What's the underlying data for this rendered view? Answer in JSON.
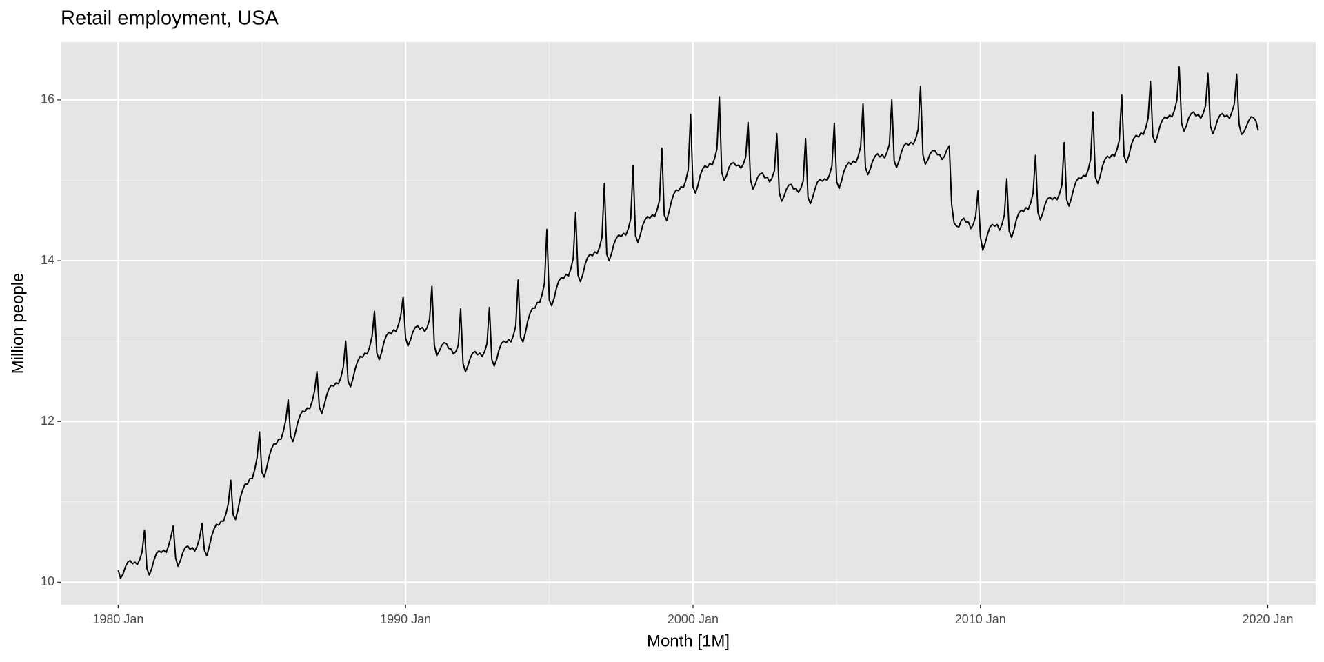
{
  "chart_data": {
    "type": "line",
    "title": "Retail employment, USA",
    "xlabel": "Month [1M]",
    "ylabel": "Million people",
    "x": [
      "1980 Jan",
      "1980 Feb",
      "1980 Mar",
      "1980 Apr",
      "1980 May",
      "1980 Jun",
      "1980 Jul",
      "1980 Aug",
      "1980 Sep",
      "1980 Oct",
      "1980 Nov",
      "1980 Dec",
      "1981 Jan",
      "1981 Feb",
      "1981 Mar",
      "1981 Apr",
      "1981 May",
      "1981 Jun",
      "1981 Jul",
      "1981 Aug",
      "1981 Sep",
      "1981 Oct",
      "1981 Nov",
      "1981 Dec",
      "1982 Jan",
      "1982 Feb",
      "1982 Mar",
      "1982 Apr",
      "1982 May",
      "1982 Jun",
      "1982 Jul",
      "1982 Aug",
      "1982 Sep",
      "1982 Oct",
      "1982 Nov",
      "1982 Dec",
      "1983 Jan",
      "1983 Feb",
      "1983 Mar",
      "1983 Apr",
      "1983 May",
      "1983 Jun",
      "1983 Jul",
      "1983 Aug",
      "1983 Sep",
      "1983 Oct",
      "1983 Nov",
      "1983 Dec",
      "1984 Jan",
      "1984 Feb",
      "1984 Mar",
      "1984 Apr",
      "1984 May",
      "1984 Jun",
      "1984 Jul",
      "1984 Aug",
      "1984 Sep",
      "1984 Oct",
      "1984 Nov",
      "1984 Dec",
      "1985 Jan",
      "1985 Feb",
      "1985 Mar",
      "1985 Apr",
      "1985 May",
      "1985 Jun",
      "1985 Jul",
      "1985 Aug",
      "1985 Sep",
      "1985 Oct",
      "1985 Nov",
      "1985 Dec",
      "1986 Jan",
      "1986 Feb",
      "1986 Mar",
      "1986 Apr",
      "1986 May",
      "1986 Jun",
      "1986 Jul",
      "1986 Aug",
      "1986 Sep",
      "1986 Oct",
      "1986 Nov",
      "1986 Dec",
      "1987 Jan",
      "1987 Feb",
      "1987 Mar",
      "1987 Apr",
      "1987 May",
      "1987 Jun",
      "1987 Jul",
      "1987 Aug",
      "1987 Sep",
      "1987 Oct",
      "1987 Nov",
      "1987 Dec",
      "1988 Jan",
      "1988 Feb",
      "1988 Mar",
      "1988 Apr",
      "1988 May",
      "1988 Jun",
      "1988 Jul",
      "1988 Aug",
      "1988 Sep",
      "1988 Oct",
      "1988 Nov",
      "1988 Dec",
      "1989 Jan",
      "1989 Feb",
      "1989 Mar",
      "1989 Apr",
      "1989 May",
      "1989 Jun",
      "1989 Jul",
      "1989 Aug",
      "1989 Sep",
      "1989 Oct",
      "1989 Nov",
      "1989 Dec",
      "1990 Jan",
      "1990 Feb",
      "1990 Mar",
      "1990 Apr",
      "1990 May",
      "1990 Jun",
      "1990 Jul",
      "1990 Aug",
      "1990 Sep",
      "1990 Oct",
      "1990 Nov",
      "1990 Dec",
      "1991 Jan",
      "1991 Feb",
      "1991 Mar",
      "1991 Apr",
      "1991 May",
      "1991 Jun",
      "1991 Jul",
      "1991 Aug",
      "1991 Sep",
      "1991 Oct",
      "1991 Nov",
      "1991 Dec",
      "1992 Jan",
      "1992 Feb",
      "1992 Mar",
      "1992 Apr",
      "1992 May",
      "1992 Jun",
      "1992 Jul",
      "1992 Aug",
      "1992 Sep",
      "1992 Oct",
      "1992 Nov",
      "1992 Dec",
      "1993 Jan",
      "1993 Feb",
      "1993 Mar",
      "1993 Apr",
      "1993 May",
      "1993 Jun",
      "1993 Jul",
      "1993 Aug",
      "1993 Sep",
      "1993 Oct",
      "1993 Nov",
      "1993 Dec",
      "1994 Jan",
      "1994 Feb",
      "1994 Mar",
      "1994 Apr",
      "1994 May",
      "1994 Jun",
      "1994 Jul",
      "1994 Aug",
      "1994 Sep",
      "1994 Oct",
      "1994 Nov",
      "1994 Dec",
      "1995 Jan",
      "1995 Feb",
      "1995 Mar",
      "1995 Apr",
      "1995 May",
      "1995 Jun",
      "1995 Jul",
      "1995 Aug",
      "1995 Sep",
      "1995 Oct",
      "1995 Nov",
      "1995 Dec",
      "1996 Jan",
      "1996 Feb",
      "1996 Mar",
      "1996 Apr",
      "1996 May",
      "1996 Jun",
      "1996 Jul",
      "1996 Aug",
      "1996 Sep",
      "1996 Oct",
      "1996 Nov",
      "1996 Dec",
      "1997 Jan",
      "1997 Feb",
      "1997 Mar",
      "1997 Apr",
      "1997 May",
      "1997 Jun",
      "1997 Jul",
      "1997 Aug",
      "1997 Sep",
      "1997 Oct",
      "1997 Nov",
      "1997 Dec",
      "1998 Jan",
      "1998 Feb",
      "1998 Mar",
      "1998 Apr",
      "1998 May",
      "1998 Jun",
      "1998 Jul",
      "1998 Aug",
      "1998 Sep",
      "1998 Oct",
      "1998 Nov",
      "1998 Dec",
      "1999 Jan",
      "1999 Feb",
      "1999 Mar",
      "1999 Apr",
      "1999 May",
      "1999 Jun",
      "1999 Jul",
      "1999 Aug",
      "1999 Sep",
      "1999 Oct",
      "1999 Nov",
      "1999 Dec",
      "2000 Jan",
      "2000 Feb",
      "2000 Mar",
      "2000 Apr",
      "2000 May",
      "2000 Jun",
      "2000 Jul",
      "2000 Aug",
      "2000 Sep",
      "2000 Oct",
      "2000 Nov",
      "2000 Dec",
      "2001 Jan",
      "2001 Feb",
      "2001 Mar",
      "2001 Apr",
      "2001 May",
      "2001 Jun",
      "2001 Jul",
      "2001 Aug",
      "2001 Sep",
      "2001 Oct",
      "2001 Nov",
      "2001 Dec",
      "2002 Jan",
      "2002 Feb",
      "2002 Mar",
      "2002 Apr",
      "2002 May",
      "2002 Jun",
      "2002 Jul",
      "2002 Aug",
      "2002 Sep",
      "2002 Oct",
      "2002 Nov",
      "2002 Dec",
      "2003 Jan",
      "2003 Feb",
      "2003 Mar",
      "2003 Apr",
      "2003 May",
      "2003 Jun",
      "2003 Jul",
      "2003 Aug",
      "2003 Sep",
      "2003 Oct",
      "2003 Nov",
      "2003 Dec",
      "2004 Jan",
      "2004 Feb",
      "2004 Mar",
      "2004 Apr",
      "2004 May",
      "2004 Jun",
      "2004 Jul",
      "2004 Aug",
      "2004 Sep",
      "2004 Oct",
      "2004 Nov",
      "2004 Dec",
      "2005 Jan",
      "2005 Feb",
      "2005 Mar",
      "2005 Apr",
      "2005 May",
      "2005 Jun",
      "2005 Jul",
      "2005 Aug",
      "2005 Sep",
      "2005 Oct",
      "2005 Nov",
      "2005 Dec",
      "2006 Jan",
      "2006 Feb",
      "2006 Mar",
      "2006 Apr",
      "2006 May",
      "2006 Jun",
      "2006 Jul",
      "2006 Aug",
      "2006 Sep",
      "2006 Oct",
      "2006 Nov",
      "2006 Dec",
      "2007 Jan",
      "2007 Feb",
      "2007 Mar",
      "2007 Apr",
      "2007 May",
      "2007 Jun",
      "2007 Jul",
      "2007 Aug",
      "2007 Sep",
      "2007 Oct",
      "2007 Nov",
      "2007 Dec",
      "2008 Jan",
      "2008 Feb",
      "2008 Mar",
      "2008 Apr",
      "2008 May",
      "2008 Jun",
      "2008 Jul",
      "2008 Aug",
      "2008 Sep",
      "2008 Oct",
      "2008 Nov",
      "2008 Dec",
      "2009 Jan",
      "2009 Feb",
      "2009 Mar",
      "2009 Apr",
      "2009 May",
      "2009 Jun",
      "2009 Jul",
      "2009 Aug",
      "2009 Sep",
      "2009 Oct",
      "2009 Nov",
      "2009 Dec",
      "2010 Jan",
      "2010 Feb",
      "2010 Mar",
      "2010 Apr",
      "2010 May",
      "2010 Jun",
      "2010 Jul",
      "2010 Aug",
      "2010 Sep",
      "2010 Oct",
      "2010 Nov",
      "2010 Dec",
      "2011 Jan",
      "2011 Feb",
      "2011 Mar",
      "2011 Apr",
      "2011 May",
      "2011 Jun",
      "2011 Jul",
      "2011 Aug",
      "2011 Sep",
      "2011 Oct",
      "2011 Nov",
      "2011 Dec",
      "2012 Jan",
      "2012 Feb",
      "2012 Mar",
      "2012 Apr",
      "2012 May",
      "2012 Jun",
      "2012 Jul",
      "2012 Aug",
      "2012 Sep",
      "2012 Oct",
      "2012 Nov",
      "2012 Dec",
      "2013 Jan",
      "2013 Feb",
      "2013 Mar",
      "2013 Apr",
      "2013 May",
      "2013 Jun",
      "2013 Jul",
      "2013 Aug",
      "2013 Sep",
      "2013 Oct",
      "2013 Nov",
      "2013 Dec",
      "2014 Jan",
      "2014 Feb",
      "2014 Mar",
      "2014 Apr",
      "2014 May",
      "2014 Jun",
      "2014 Jul",
      "2014 Aug",
      "2014 Sep",
      "2014 Oct",
      "2014 Nov",
      "2014 Dec",
      "2015 Jan",
      "2015 Feb",
      "2015 Mar",
      "2015 Apr",
      "2015 May",
      "2015 Jun",
      "2015 Jul",
      "2015 Aug",
      "2015 Sep",
      "2015 Oct",
      "2015 Nov",
      "2015 Dec",
      "2016 Jan",
      "2016 Feb",
      "2016 Mar",
      "2016 Apr",
      "2016 May",
      "2016 Jun",
      "2016 Jul",
      "2016 Aug",
      "2016 Sep",
      "2016 Oct",
      "2016 Nov",
      "2016 Dec",
      "2017 Jan",
      "2017 Feb",
      "2017 Mar",
      "2017 Apr",
      "2017 May",
      "2017 Jun",
      "2017 Jul",
      "2017 Aug",
      "2017 Sep",
      "2017 Oct",
      "2017 Nov",
      "2017 Dec",
      "2018 Jan",
      "2018 Feb",
      "2018 Mar",
      "2018 Apr",
      "2018 May",
      "2018 Jun",
      "2018 Jul",
      "2018 Aug",
      "2018 Sep",
      "2018 Oct",
      "2018 Nov",
      "2018 Dec",
      "2019 Jan",
      "2019 Feb",
      "2019 Mar",
      "2019 Apr",
      "2019 May",
      "2019 Jun",
      "2019 Jul",
      "2019 Aug",
      "2019 Sep"
    ],
    "values": [
      10.15,
      10.05,
      10.1,
      10.19,
      10.25,
      10.27,
      10.23,
      10.25,
      10.22,
      10.28,
      10.38,
      10.65,
      10.17,
      10.09,
      10.17,
      10.28,
      10.36,
      10.39,
      10.37,
      10.4,
      10.37,
      10.45,
      10.56,
      10.7,
      10.3,
      10.2,
      10.27,
      10.37,
      10.43,
      10.45,
      10.41,
      10.43,
      10.39,
      10.45,
      10.55,
      10.73,
      10.4,
      10.33,
      10.44,
      10.57,
      10.66,
      10.72,
      10.71,
      10.76,
      10.76,
      10.85,
      10.98,
      11.27,
      10.84,
      10.78,
      10.9,
      11.05,
      11.15,
      11.22,
      11.22,
      11.29,
      11.29,
      11.4,
      11.55,
      11.87,
      11.37,
      11.31,
      11.42,
      11.56,
      11.66,
      11.72,
      11.72,
      11.78,
      11.78,
      11.88,
      12.02,
      12.27,
      11.82,
      11.75,
      11.86,
      11.99,
      12.08,
      12.13,
      12.12,
      12.17,
      12.16,
      12.25,
      12.38,
      12.62,
      12.18,
      12.1,
      12.2,
      12.32,
      12.41,
      12.45,
      12.44,
      12.48,
      12.47,
      12.55,
      12.68,
      13.0,
      12.5,
      12.43,
      12.53,
      12.66,
      12.75,
      12.81,
      12.8,
      12.85,
      12.84,
      12.93,
      13.06,
      13.37,
      12.85,
      12.77,
      12.86,
      12.99,
      13.07,
      13.11,
      13.09,
      13.14,
      13.12,
      13.2,
      13.32,
      13.55,
      13.04,
      12.94,
      13.01,
      13.11,
      13.17,
      13.19,
      13.15,
      13.17,
      13.12,
      13.17,
      13.27,
      13.68,
      12.95,
      12.82,
      12.87,
      12.94,
      12.98,
      12.97,
      12.91,
      12.9,
      12.84,
      12.87,
      12.95,
      13.4,
      12.72,
      12.62,
      12.69,
      12.79,
      12.85,
      12.87,
      12.83,
      12.85,
      12.81,
      12.87,
      12.97,
      13.42,
      12.77,
      12.69,
      12.77,
      12.89,
      12.97,
      13.0,
      12.98,
      13.02,
      12.99,
      13.07,
      13.19,
      13.76,
      13.05,
      12.99,
      13.1,
      13.25,
      13.35,
      13.41,
      13.41,
      13.48,
      13.48,
      13.58,
      13.72,
      14.39,
      13.51,
      13.44,
      13.53,
      13.66,
      13.75,
      13.79,
      13.78,
      13.83,
      13.81,
      13.9,
      14.03,
      14.6,
      13.82,
      13.74,
      13.83,
      13.96,
      14.04,
      14.08,
      14.06,
      14.11,
      14.09,
      14.17,
      14.29,
      14.96,
      14.08,
      14.0,
      14.09,
      14.21,
      14.28,
      14.32,
      14.3,
      14.34,
      14.32,
      14.4,
      14.52,
      15.18,
      14.31,
      14.23,
      14.32,
      14.44,
      14.51,
      14.55,
      14.53,
      14.57,
      14.55,
      14.63,
      14.75,
      15.4,
      14.57,
      14.5,
      14.61,
      14.74,
      14.83,
      14.88,
      14.87,
      14.92,
      14.91,
      15.0,
      15.13,
      15.82,
      14.92,
      14.84,
      14.93,
      15.06,
      15.14,
      15.18,
      15.16,
      15.21,
      15.19,
      15.27,
      15.39,
      16.04,
      15.1,
      15.0,
      15.06,
      15.16,
      15.21,
      15.22,
      15.18,
      15.19,
      15.15,
      15.2,
      15.29,
      15.72,
      15.01,
      14.89,
      14.95,
      15.04,
      15.08,
      15.09,
      15.03,
      15.04,
      14.98,
      15.03,
      15.12,
      15.58,
      14.85,
      14.74,
      14.8,
      14.89,
      14.94,
      14.95,
      14.89,
      14.9,
      14.85,
      14.9,
      14.99,
      15.52,
      14.79,
      14.71,
      14.79,
      14.9,
      14.98,
      15.01,
      14.99,
      15.02,
      15.0,
      15.07,
      15.18,
      15.71,
      14.98,
      14.9,
      14.99,
      15.11,
      15.18,
      15.22,
      15.2,
      15.24,
      15.22,
      15.3,
      15.42,
      15.95,
      15.16,
      15.07,
      15.14,
      15.24,
      15.3,
      15.33,
      15.29,
      15.32,
      15.28,
      15.35,
      15.45,
      16.0,
      15.24,
      15.16,
      15.24,
      15.35,
      15.43,
      15.46,
      15.44,
      15.47,
      15.45,
      15.52,
      15.63,
      16.17,
      15.32,
      15.2,
      15.25,
      15.33,
      15.37,
      15.37,
      15.32,
      15.32,
      15.26,
      15.3,
      15.38,
      15.43,
      14.7,
      14.47,
      14.43,
      14.42,
      14.5,
      14.53,
      14.48,
      14.48,
      14.4,
      14.45,
      14.55,
      14.87,
      14.3,
      14.13,
      14.22,
      14.33,
      14.42,
      14.45,
      14.43,
      14.45,
      14.38,
      14.45,
      14.57,
      15.02,
      14.37,
      14.29,
      14.38,
      14.51,
      14.59,
      14.63,
      14.61,
      14.66,
      14.64,
      14.72,
      14.84,
      15.31,
      14.6,
      14.51,
      14.59,
      14.7,
      14.77,
      14.79,
      14.76,
      14.79,
      14.76,
      14.83,
      14.94,
      15.47,
      14.76,
      14.68,
      14.78,
      14.9,
      14.99,
      15.03,
      15.02,
      15.06,
      15.05,
      15.13,
      15.26,
      15.85,
      15.04,
      14.96,
      15.05,
      15.18,
      15.26,
      15.3,
      15.28,
      15.32,
      15.3,
      15.38,
      15.5,
      16.06,
      15.3,
      15.22,
      15.31,
      15.44,
      15.52,
      15.56,
      15.54,
      15.59,
      15.57,
      15.65,
      15.77,
      16.23,
      15.55,
      15.47,
      15.56,
      15.68,
      15.75,
      15.79,
      15.77,
      15.81,
      15.79,
      15.87,
      15.99,
      16.41,
      15.71,
      15.61,
      15.68,
      15.78,
      15.83,
      15.85,
      15.8,
      15.82,
      15.77,
      15.83,
      15.93,
      16.33,
      15.68,
      15.58,
      15.65,
      15.75,
      15.81,
      15.83,
      15.79,
      15.81,
      15.77,
      15.85,
      15.95,
      16.32,
      15.7,
      15.57,
      15.6,
      15.67,
      15.74,
      15.79,
      15.78,
      15.74,
      15.62
    ],
    "color": "#000000",
    "xlim": [
      "1978 Jan",
      "2021 Sep"
    ],
    "xticks": [
      "1980 Jan",
      "1990 Jan",
      "2000 Jan",
      "2010 Jan",
      "2020 Jan"
    ],
    "ylim": [
      9.72,
      16.72
    ],
    "yticks": [
      10,
      12,
      14,
      16
    ],
    "grid": true
  }
}
